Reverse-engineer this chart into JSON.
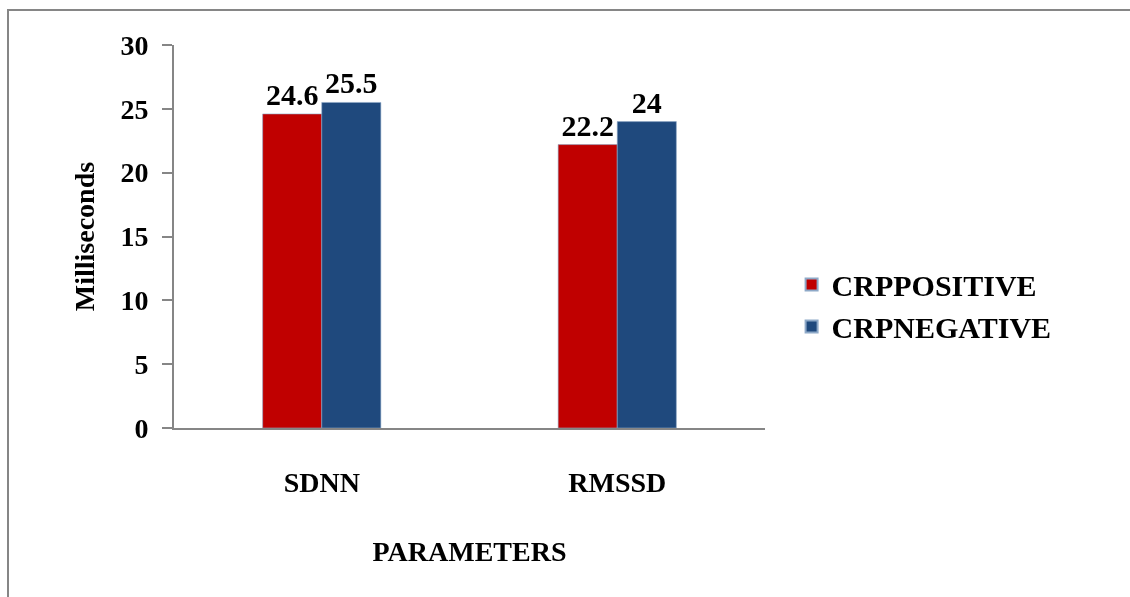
{
  "chart_data": {
    "type": "bar",
    "categories": [
      "SDNN",
      "RMSSD"
    ],
    "series": [
      {
        "name": "CRPPOSITIVE",
        "color": "#c00000",
        "values": [
          24.6,
          22.2
        ]
      },
      {
        "name": "CRPNEGATIVE",
        "color": "#1f497d",
        "values": [
          25.5,
          24
        ]
      }
    ],
    "xlabel": "PARAMETERS",
    "ylabel": "Milliseconds",
    "ylim": [
      0,
      30
    ],
    "yticks": [
      0,
      5,
      10,
      15,
      20,
      25,
      30
    ],
    "data_labels": true,
    "grid": false,
    "legend": "right"
  }
}
